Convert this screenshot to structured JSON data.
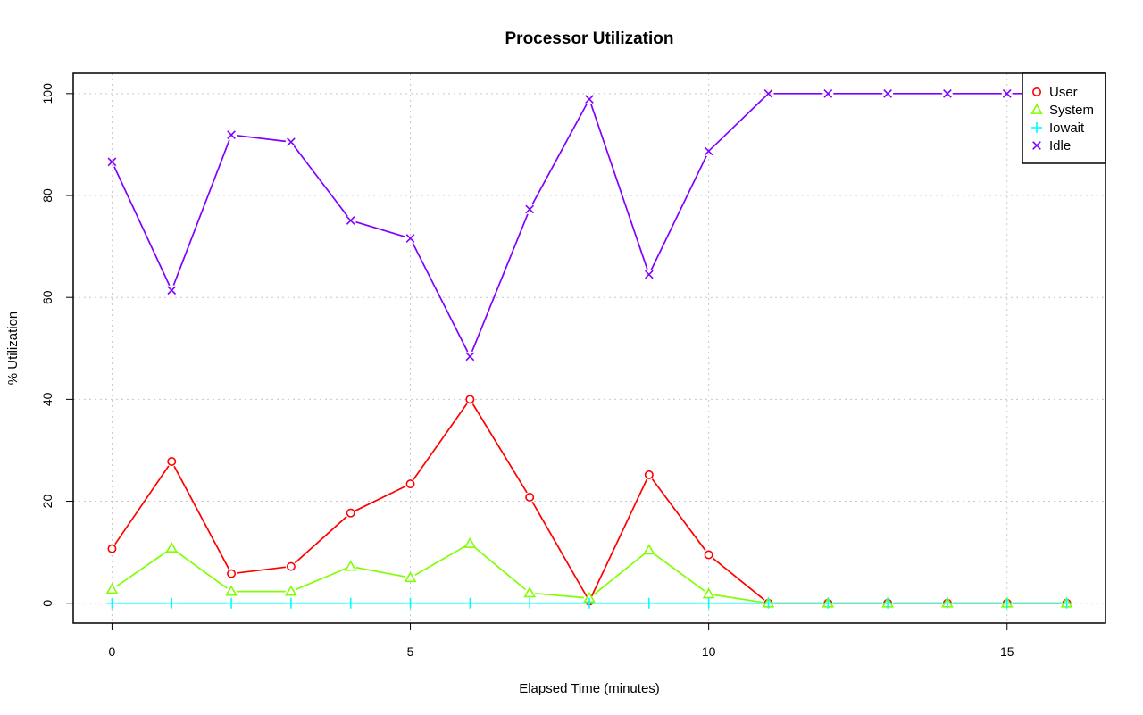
{
  "chart_data": {
    "type": "line",
    "title": "Processor Utilization",
    "xlabel": "Elapsed Time (minutes)",
    "ylabel": "% Utilization",
    "xlim": [
      -0.65,
      16.65
    ],
    "ylim": [
      -3.9,
      104
    ],
    "x_ticks": [
      0,
      5,
      10,
      15
    ],
    "y_ticks": [
      0,
      20,
      40,
      60,
      80,
      100
    ],
    "grid": true,
    "legend_position": "top-right",
    "x": [
      0,
      1,
      2,
      3,
      4,
      5,
      6,
      7,
      8,
      9,
      10,
      11,
      12,
      13,
      14,
      15,
      16
    ],
    "series": [
      {
        "name": "User",
        "color": "#ff0000",
        "marker": "circle",
        "values": [
          10.7,
          27.8,
          5.8,
          7.2,
          17.7,
          23.4,
          40.0,
          20.8,
          0.4,
          25.2,
          9.5,
          0,
          0,
          0,
          0,
          0,
          0
        ]
      },
      {
        "name": "System",
        "color": "#80ff00",
        "marker": "triangle",
        "values": [
          2.7,
          10.8,
          2.3,
          2.3,
          7.2,
          5.0,
          11.7,
          2.0,
          1.0,
          10.4,
          1.8,
          0,
          0,
          0,
          0,
          0,
          0
        ]
      },
      {
        "name": "Iowait",
        "color": "#00ffff",
        "marker": "plus",
        "values": [
          0,
          0,
          0,
          0,
          0,
          0,
          0,
          0,
          0,
          0,
          0,
          0,
          0,
          0,
          0,
          0,
          0
        ]
      },
      {
        "name": "Idle",
        "color": "#8000ff",
        "marker": "cross",
        "values": [
          86.6,
          61.4,
          91.9,
          90.5,
          75.1,
          71.6,
          48.4,
          77.3,
          98.9,
          64.5,
          88.7,
          100,
          100,
          100,
          100,
          100,
          100
        ]
      }
    ]
  }
}
